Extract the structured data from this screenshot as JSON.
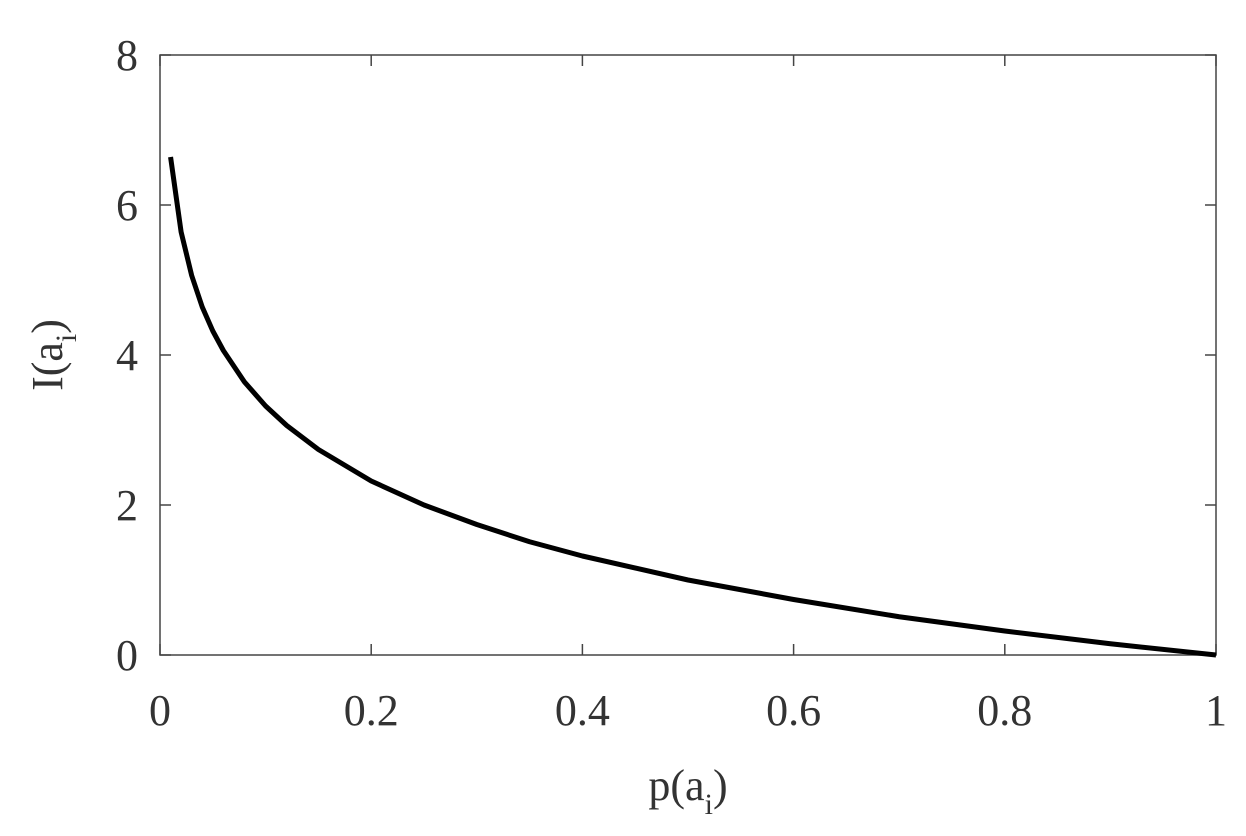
{
  "chart_data": {
    "type": "line",
    "xlabel": [
      "p(a",
      "i",
      ")"
    ],
    "ylabel": [
      "I(a",
      "i",
      ")"
    ],
    "x": [
      0.01,
      0.02,
      0.03,
      0.04,
      0.05,
      0.06,
      0.08,
      0.1,
      0.12,
      0.15,
      0.2,
      0.25,
      0.3,
      0.35,
      0.4,
      0.5,
      0.6,
      0.7,
      0.8,
      0.9,
      1.0
    ],
    "series": [
      {
        "color": "#000000",
        "values": [
          6.64,
          5.64,
          5.06,
          4.64,
          4.32,
          4.06,
          3.64,
          3.32,
          3.06,
          2.74,
          2.32,
          2.0,
          1.74,
          1.51,
          1.32,
          1.0,
          0.74,
          0.51,
          0.32,
          0.15,
          0.0
        ]
      }
    ],
    "xlim": [
      0,
      1
    ],
    "ylim": [
      0,
      8
    ],
    "xticks": [
      0,
      0.2,
      0.4,
      0.6,
      0.8,
      1
    ],
    "yticks": [
      0,
      2,
      4,
      6,
      8
    ]
  }
}
